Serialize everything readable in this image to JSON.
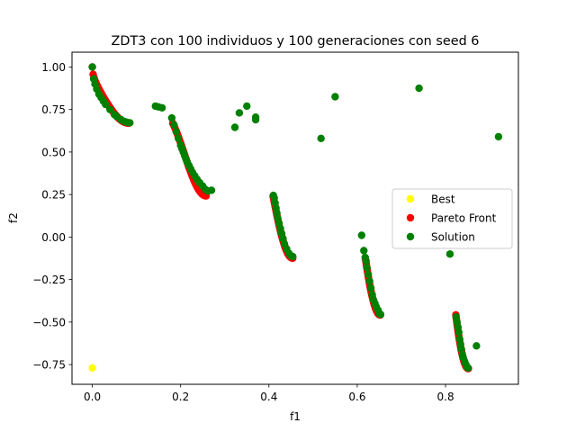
{
  "chart_data": {
    "type": "scatter",
    "title": "ZDT3 con 100 individuos y 100 generaciones con seed 6",
    "xlabel": "f1",
    "ylabel": "f2",
    "xlim": [
      -0.046,
      0.965
    ],
    "ylim": [
      -0.866,
      1.087
    ],
    "xticks": [
      0.0,
      0.2,
      0.4,
      0.6,
      0.8
    ],
    "xtick_labels": [
      "0.0",
      "0.2",
      "0.4",
      "0.6",
      "0.8"
    ],
    "yticks": [
      -0.75,
      -0.5,
      -0.25,
      0.0,
      0.25,
      0.5,
      0.75,
      1.0
    ],
    "ytick_labels": [
      "−0.75",
      "−0.50",
      "−0.25",
      "0.00",
      "0.25",
      "0.50",
      "0.75",
      "1.00"
    ],
    "grid": false,
    "legend_position": "center-right",
    "series": [
      {
        "name": "Best",
        "color": "#ffff00",
        "kind": "points",
        "points": [
          [
            0.0,
            -0.77
          ]
        ]
      },
      {
        "name": "Pareto Front",
        "color": "#ff0000",
        "kind": "zdt3-front",
        "segments": [
          [
            0.0,
            0.083
          ],
          [
            0.1822,
            0.2578
          ],
          [
            0.4094,
            0.4539
          ],
          [
            0.6184,
            0.6525
          ],
          [
            0.8233,
            0.8518
          ]
        ]
      },
      {
        "name": "Solution",
        "color": "#008000",
        "kind": "points",
        "points": [
          [
            0.0,
            1.0
          ],
          [
            0.003,
            0.93
          ],
          [
            0.006,
            0.9
          ],
          [
            0.01,
            0.87
          ],
          [
            0.015,
            0.84
          ],
          [
            0.02,
            0.82
          ],
          [
            0.025,
            0.8
          ],
          [
            0.03,
            0.78
          ],
          [
            0.04,
            0.75
          ],
          [
            0.05,
            0.72
          ],
          [
            0.055,
            0.71
          ],
          [
            0.065,
            0.69
          ],
          [
            0.072,
            0.68
          ],
          [
            0.078,
            0.675
          ],
          [
            0.085,
            0.672
          ],
          [
            0.143,
            0.77
          ],
          [
            0.15,
            0.765
          ],
          [
            0.158,
            0.76
          ],
          [
            0.18,
            0.7
          ],
          [
            0.185,
            0.66
          ],
          [
            0.19,
            0.62
          ],
          [
            0.195,
            0.58
          ],
          [
            0.2,
            0.54
          ],
          [
            0.203,
            0.52
          ],
          [
            0.206,
            0.5
          ],
          [
            0.209,
            0.48
          ],
          [
            0.212,
            0.46
          ],
          [
            0.215,
            0.44
          ],
          [
            0.219,
            0.42
          ],
          [
            0.223,
            0.4
          ],
          [
            0.227,
            0.38
          ],
          [
            0.232,
            0.36
          ],
          [
            0.237,
            0.34
          ],
          [
            0.243,
            0.32
          ],
          [
            0.25,
            0.3
          ],
          [
            0.256,
            0.28
          ],
          [
            0.262,
            0.27
          ],
          [
            0.27,
            0.275
          ],
          [
            0.323,
            0.645
          ],
          [
            0.333,
            0.73
          ],
          [
            0.35,
            0.77
          ],
          [
            0.37,
            0.705
          ],
          [
            0.37,
            0.69
          ],
          [
            0.518,
            0.58
          ],
          [
            0.55,
            0.825
          ],
          [
            0.74,
            0.875
          ],
          [
            0.92,
            0.59
          ],
          [
            0.41,
            0.245
          ],
          [
            0.412,
            0.23
          ],
          [
            0.414,
            0.2
          ],
          [
            0.416,
            0.17
          ],
          [
            0.418,
            0.14
          ],
          [
            0.42,
            0.11
          ],
          [
            0.423,
            0.08
          ],
          [
            0.426,
            0.05
          ],
          [
            0.429,
            0.02
          ],
          [
            0.432,
            -0.01
          ],
          [
            0.435,
            -0.04
          ],
          [
            0.44,
            -0.07
          ],
          [
            0.445,
            -0.095
          ],
          [
            0.45,
            -0.11
          ],
          [
            0.454,
            -0.115
          ],
          [
            0.61,
            0.01
          ],
          [
            0.615,
            -0.08
          ],
          [
            0.618,
            -0.12
          ],
          [
            0.62,
            -0.14
          ],
          [
            0.622,
            -0.18
          ],
          [
            0.625,
            -0.22
          ],
          [
            0.628,
            -0.26
          ],
          [
            0.631,
            -0.3
          ],
          [
            0.634,
            -0.34
          ],
          [
            0.637,
            -0.37
          ],
          [
            0.64,
            -0.39
          ],
          [
            0.643,
            -0.41
          ],
          [
            0.647,
            -0.43
          ],
          [
            0.65,
            -0.45
          ],
          [
            0.653,
            -0.455
          ],
          [
            0.81,
            -0.1
          ],
          [
            0.87,
            -0.64
          ],
          [
            0.824,
            -0.47
          ],
          [
            0.826,
            -0.5
          ],
          [
            0.828,
            -0.53
          ],
          [
            0.83,
            -0.56
          ],
          [
            0.832,
            -0.6
          ],
          [
            0.834,
            -0.63
          ],
          [
            0.836,
            -0.66
          ],
          [
            0.838,
            -0.69
          ],
          [
            0.84,
            -0.71
          ],
          [
            0.843,
            -0.73
          ],
          [
            0.846,
            -0.75
          ],
          [
            0.849,
            -0.765
          ],
          [
            0.851,
            -0.77
          ]
        ]
      }
    ]
  }
}
